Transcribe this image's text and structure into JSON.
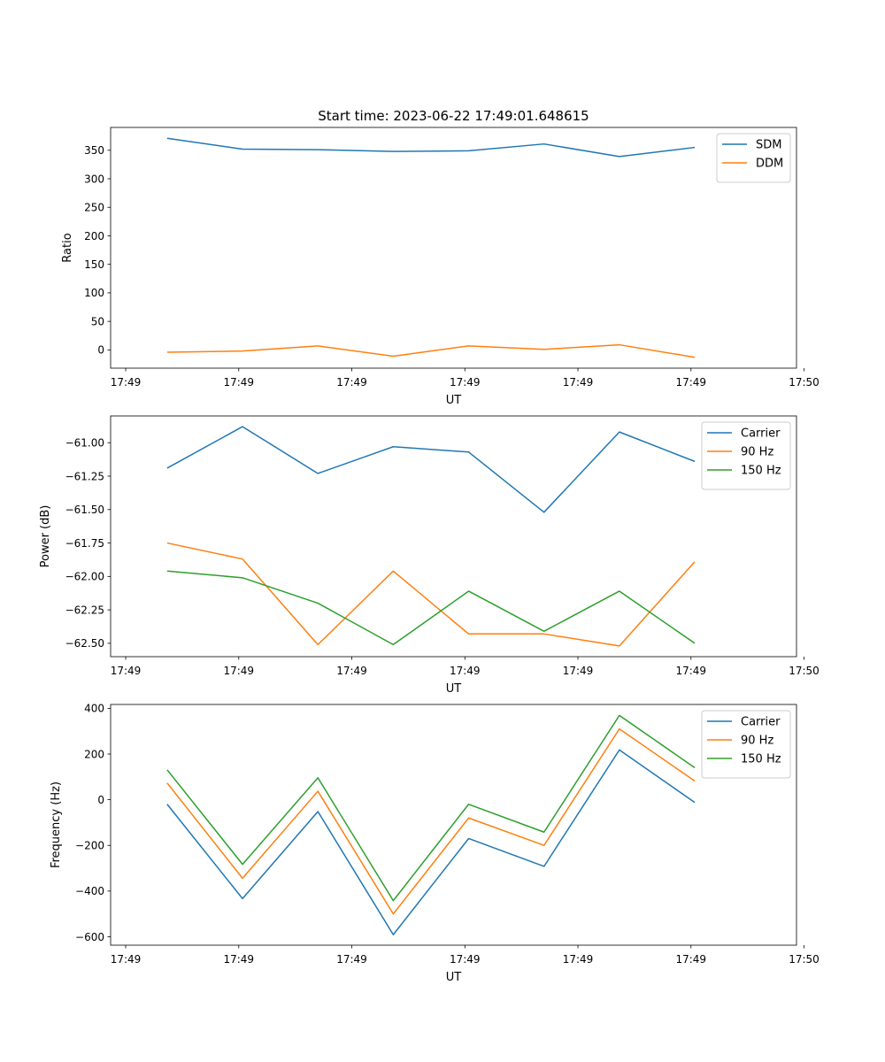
{
  "figure_title": "Start time: 2023-06-22 17:49:01.648615",
  "chart_data": [
    {
      "type": "line",
      "title": "Start time: 2023-06-22 17:49:01.648615",
      "xlabel": "UT",
      "ylabel": "Ratio",
      "x": [
        1,
        2,
        3,
        4,
        5,
        6,
        7,
        8
      ],
      "xlim": [
        0.25,
        9.35
      ],
      "xticks": [
        0.45,
        1.95,
        3.45,
        4.95,
        6.45,
        7.95,
        9.45
      ],
      "xtick_labels": [
        "17:49",
        "17:49",
        "17:49",
        "17:49",
        "17:49",
        "17:49",
        "17:50"
      ],
      "ylim": [
        -32,
        390
      ],
      "yticks": [
        0,
        50,
        100,
        150,
        200,
        250,
        300,
        350
      ],
      "ytick_labels": [
        "0",
        "50",
        "100",
        "150",
        "200",
        "250",
        "300",
        "350"
      ],
      "legend_position": "top-right",
      "grid": false,
      "series": [
        {
          "name": "SDM",
          "color": "#1f77b4",
          "values": [
            371,
            352,
            351,
            348,
            349,
            361,
            339,
            355
          ]
        },
        {
          "name": "DDM",
          "color": "#ff7f0e",
          "values": [
            -4,
            -2,
            7,
            -11,
            7,
            1,
            9,
            -13
          ]
        }
      ]
    },
    {
      "type": "line",
      "title": "",
      "xlabel": "UT",
      "ylabel": "Power (dB)",
      "x": [
        1,
        2,
        3,
        4,
        5,
        6,
        7,
        8
      ],
      "xlim": [
        0.25,
        9.35
      ],
      "xticks": [
        0.45,
        1.95,
        3.45,
        4.95,
        6.45,
        7.95,
        9.45
      ],
      "xtick_labels": [
        "17:49",
        "17:49",
        "17:49",
        "17:49",
        "17:49",
        "17:49",
        "17:50"
      ],
      "ylim": [
        -62.6,
        -60.8
      ],
      "yticks": [
        -61.0,
        -61.25,
        -61.5,
        -61.75,
        -62.0,
        -62.25,
        -62.5
      ],
      "ytick_labels": [
        "−61.00",
        "−61.25",
        "−61.50",
        "−61.75",
        "−62.00",
        "−62.25",
        "−62.50"
      ],
      "legend_position": "top-right",
      "grid": false,
      "series": [
        {
          "name": "Carrier",
          "color": "#1f77b4",
          "values": [
            -61.19,
            -60.88,
            -61.23,
            -61.03,
            -61.07,
            -61.52,
            -60.92,
            -61.14
          ]
        },
        {
          "name": "90 Hz",
          "color": "#ff7f0e",
          "values": [
            -61.75,
            -61.87,
            -62.51,
            -61.96,
            -62.43,
            -62.43,
            -62.52,
            -61.89
          ]
        },
        {
          "name": "150 Hz",
          "color": "#2ca02c",
          "values": [
            -61.96,
            -62.01,
            -62.2,
            -62.51,
            -62.11,
            -62.41,
            -62.11,
            -62.5
          ]
        }
      ]
    },
    {
      "type": "line",
      "title": "",
      "xlabel": "UT",
      "ylabel": "Frequency (Hz)",
      "x": [
        1,
        2,
        3,
        4,
        5,
        6,
        7,
        8
      ],
      "xlim": [
        0.25,
        9.35
      ],
      "xticks": [
        0.45,
        1.95,
        3.45,
        4.95,
        6.45,
        7.95,
        9.45
      ],
      "xtick_labels": [
        "17:49",
        "17:49",
        "17:49",
        "17:49",
        "17:49",
        "17:49",
        "17:50"
      ],
      "ylim": [
        -637,
        417
      ],
      "yticks": [
        400,
        200,
        0,
        -200,
        -400,
        -600
      ],
      "ytick_labels": [
        "400",
        "200",
        "0",
        "−200",
        "−400",
        "−600"
      ],
      "legend_position": "top-right",
      "grid": false,
      "series": [
        {
          "name": "Carrier",
          "color": "#1f77b4",
          "values": [
            -20,
            -433,
            -52,
            -591,
            -170,
            -292,
            218,
            -12
          ]
        },
        {
          "name": "90 Hz",
          "color": "#ff7f0e",
          "values": [
            73,
            -344,
            37,
            -500,
            -80,
            -200,
            310,
            82
          ]
        },
        {
          "name": "150 Hz",
          "color": "#2ca02c",
          "values": [
            131,
            -283,
            96,
            -442,
            -20,
            -142,
            369,
            140
          ]
        }
      ]
    }
  ]
}
